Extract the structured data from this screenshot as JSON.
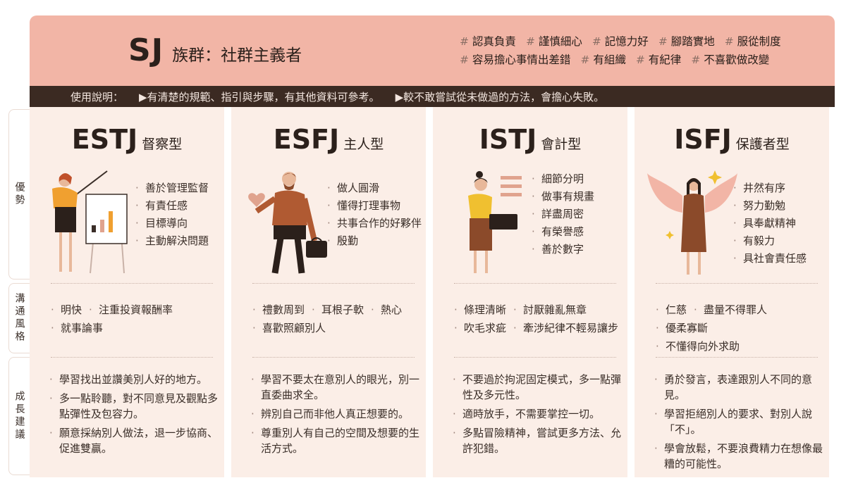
{
  "header": {
    "title_main": "SJ",
    "title_sub": "族群：社群主義者",
    "tags_row1": [
      "認真負責",
      "謹慎細心",
      "記憶力好",
      "腳踏實地",
      "服從制度"
    ],
    "tags_row2": [
      "容易擔心事情出差錯",
      "有組織",
      "有紀律",
      "不喜歡做改變"
    ]
  },
  "usage": {
    "label": "使用說明：",
    "item1": "▶有清楚的規範、指引與步驟，有其他資料可參考。",
    "item2": "▶較不敢嘗試從未做過的方法，會擔心失敗。"
  },
  "side_labels": {
    "strengths": "優勢",
    "communication": "溝通風格",
    "growth": "成長建議"
  },
  "columns": [
    {
      "code": "ESTJ",
      "type": "督察型",
      "strengths": [
        "善於管理監督",
        "有責任感",
        "目標導向",
        "主動解決問題"
      ],
      "communication": [
        "明快",
        "注重投資報酬率",
        "就事論事"
      ],
      "growth": [
        "學習找出並讚美別人好的地方。",
        "多一點聆聽，對不同意見及觀點多點彈性及包容力。",
        "願意採納別人做法，退一步協商、促進雙贏。"
      ]
    },
    {
      "code": "ESFJ",
      "type": "主人型",
      "strengths": [
        "做人圓滑",
        "懂得打理事物",
        "共事合作的好夥伴",
        "殷勤"
      ],
      "communication": [
        "禮數周到",
        "耳根子軟",
        "熱心",
        "喜歡照顧別人"
      ],
      "growth": [
        "學習不要太在意別人的眼光，別一直委曲求全。",
        "辨別自己而非他人真正想要的。",
        "尊重別人有自己的空間及想要的生活方式。"
      ]
    },
    {
      "code": "ISTJ",
      "type": "會計型",
      "strengths": [
        "細節分明",
        "做事有規畫",
        "詳盡周密",
        "有榮譽感",
        "善於數字"
      ],
      "communication": [
        "條理清晰",
        "討厭雜亂無章",
        "吹毛求疵",
        "牽涉紀律不輕易讓步"
      ],
      "growth": [
        "不要過於拘泥固定模式，多一點彈性及多元性。",
        "適時放手，不需要掌控一切。",
        "多點冒險精神，嘗試更多方法、允許犯錯。"
      ]
    },
    {
      "code": "ISFJ",
      "type": "保護者型",
      "strengths": [
        "井然有序",
        "努力勤勉",
        "具奉獻精神",
        "有毅力",
        "具社會責任感"
      ],
      "communication": [
        "仁慈",
        "盡量不得罪人",
        "優柔寡斷",
        "不懂得向外求助"
      ],
      "growth": [
        "勇於發言，表達跟別人不同的意見。",
        "學習拒絕別人的要求、對別人說「不」。",
        "學會放鬆，不要浪費精力在想像最糟的可能性。"
      ]
    }
  ],
  "colors": {
    "header_bg": "#f2b5a6",
    "usage_bg": "#3b2a22",
    "column_bg": "#fbeee7",
    "accent_orange": "#f0a030",
    "accent_brown": "#8b4a2a"
  }
}
